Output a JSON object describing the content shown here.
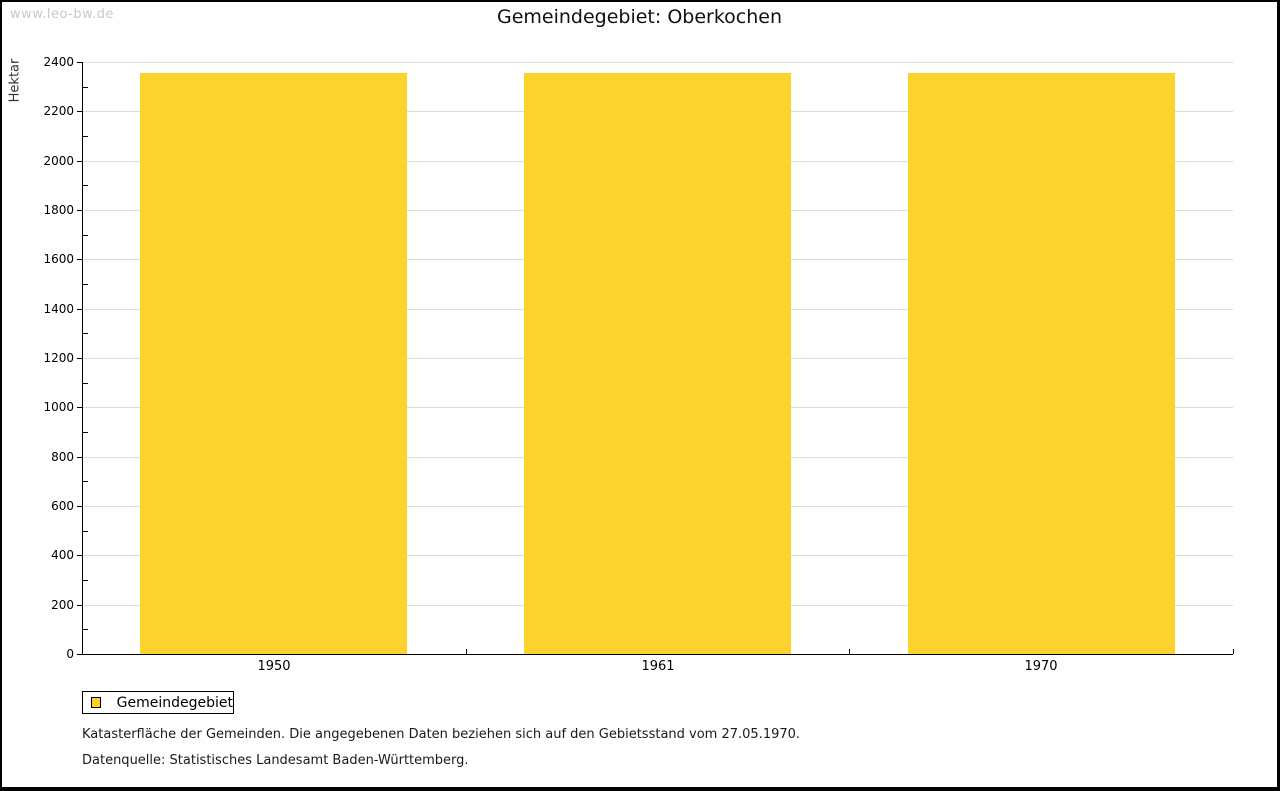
{
  "watermark": "www.leo-bw.de",
  "title": "Gemeindegebiet: Oberkochen",
  "notes": [
    "Katasterfläche der Gemeinden. Die angegebenen Daten beziehen sich auf den Gebietsstand vom 27.05.1970.",
    "Datenquelle: Statistisches Landesamt Baden-Württemberg."
  ],
  "chart_data": {
    "type": "bar",
    "title": "Gemeindegebiet: Oberkochen",
    "categories": [
      "1950",
      "1961",
      "1970"
    ],
    "series": [
      {
        "name": "Gemeindegebiet",
        "values": [
          2356,
          2356,
          2356
        ],
        "color": "#FCD32D"
      }
    ],
    "xlabel": "",
    "ylabel": "Hektar",
    "ylim": [
      0,
      2400
    ],
    "ytick_major": 200,
    "ytick_minor": 100,
    "grid": true,
    "grid_color": "#DCDCDC",
    "axis_color": "#000000",
    "legend": {
      "position": "bottom-left",
      "entries": [
        "Gemeindegebiet"
      ]
    }
  }
}
